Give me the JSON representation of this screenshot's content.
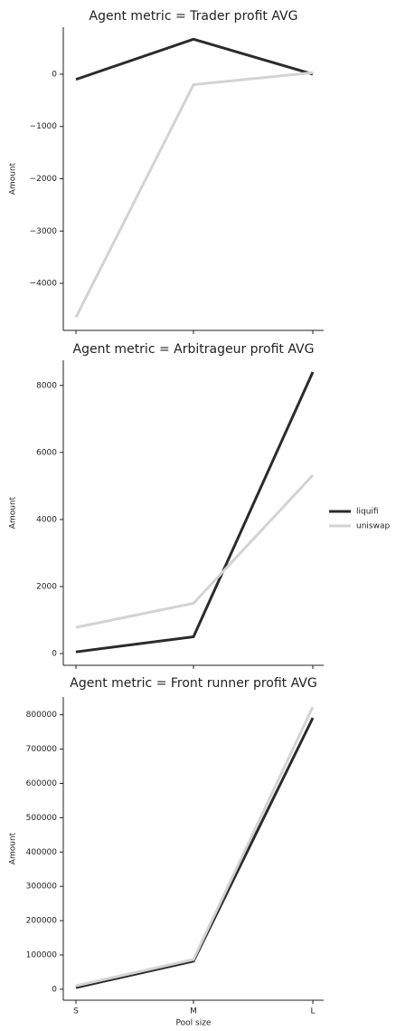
{
  "chart_data": [
    {
      "type": "line",
      "title": "Agent metric = Trader profit AVG",
      "ylabel": "Amount",
      "series": [
        {
          "color": "#2b2b2b",
          "values": [
            -100,
            670,
            0
          ]
        },
        {
          "color": "#d3d3d3",
          "values": [
            -4650,
            -200,
            30
          ]
        }
      ],
      "ylim": [
        -4900,
        900
      ],
      "yticks": [
        {
          "value": -4000,
          "label": "−4000"
        },
        {
          "value": -3000,
          "label": "−3000"
        },
        {
          "value": -2000,
          "label": "−2000"
        },
        {
          "value": -1000,
          "label": "−1000"
        },
        0
      ]
    },
    {
      "type": "line",
      "title": "Agent metric = Arbitrageur profit AVG",
      "ylabel": "Amount",
      "series": [
        {
          "name": "liquifi",
          "color": "#2b2b2b",
          "values": [
            50,
            500,
            8400
          ]
        },
        {
          "name": "uniswap",
          "color": "#d3d3d3",
          "values": [
            780,
            1500,
            5320
          ]
        }
      ],
      "ylim": [
        -350,
        8750
      ],
      "yticks": [
        0,
        2000,
        4000,
        6000,
        8000
      ]
    },
    {
      "type": "line",
      "title": "Agent metric = Front runner profit AVG",
      "ylabel": "Amount",
      "xlabel": "Pool size",
      "categories": [
        "S",
        "M",
        "L"
      ],
      "series": [
        {
          "color": "#2b2b2b",
          "values": [
            5000,
            82000,
            791000
          ]
        },
        {
          "color": "#d3d3d3",
          "values": [
            10000,
            87000,
            823000
          ]
        }
      ],
      "ylim": [
        -32000,
        852000
      ],
      "yticks": [
        0,
        100000,
        200000,
        300000,
        400000,
        500000,
        600000,
        700000,
        800000
      ]
    }
  ]
}
